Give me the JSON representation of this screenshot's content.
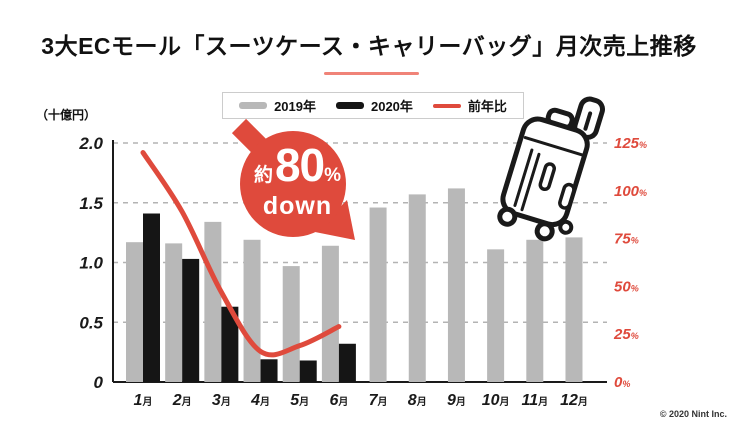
{
  "title": "3大ECモール「スーツケース・キャリーバッグ」月次売上推移",
  "legend": {
    "items": [
      {
        "label": "2019年",
        "type": "bar",
        "color": "#b8b8b8"
      },
      {
        "label": "2020年",
        "type": "bar",
        "color": "#151515"
      },
      {
        "label": "前年比",
        "type": "line",
        "color": "#df4a3c"
      }
    ]
  },
  "annotation": {
    "prefix": "約",
    "value": "80",
    "unit": "%",
    "word": "down"
  },
  "footer": {
    "copyright": "© 2020 Nint Inc."
  },
  "colors": {
    "accent_red": "#df4a3c",
    "underline_red": "#f08378",
    "bar_2019": "#b8b8b8",
    "bar_2020": "#151515",
    "grid": "#b3b3b3",
    "axis_text": "#1a1a1a"
  },
  "chart_data": {
    "type": "bar",
    "subtype": "grouped monthly bars with year-over-year ratio overlay line",
    "title": "3大ECモール「スーツケース・キャリーバッグ」月次売上推移",
    "categories": [
      "1月",
      "2月",
      "3月",
      "4月",
      "5月",
      "6月",
      "7月",
      "8月",
      "9月",
      "10月",
      "11月",
      "12月"
    ],
    "series": [
      {
        "name": "2019年",
        "type": "bar",
        "axis": "left",
        "color": "#b8b8b8",
        "values": [
          1.17,
          1.16,
          1.34,
          1.19,
          0.97,
          1.14,
          1.46,
          1.57,
          1.62,
          1.11,
          1.19,
          1.21
        ]
      },
      {
        "name": "2020年",
        "type": "bar",
        "axis": "left",
        "color": "#151515",
        "values": [
          1.41,
          1.03,
          0.63,
          0.19,
          0.18,
          0.32,
          null,
          null,
          null,
          null,
          null,
          null
        ]
      },
      {
        "name": "前年比",
        "type": "line",
        "axis": "right",
        "color": "#df4a3c",
        "unit": "%",
        "values": [
          120,
          89,
          47,
          16,
          19,
          29,
          null,
          null,
          null,
          null,
          null,
          null
        ]
      }
    ],
    "left_axis": {
      "label": "（十億円）",
      "ticks": [
        "2.0",
        "1.5",
        "1.0",
        "0.5",
        "0"
      ],
      "tick_values": [
        2.0,
        1.5,
        1.0,
        0.5,
        0
      ],
      "range": [
        0,
        2.0
      ]
    },
    "right_axis": {
      "ticks": [
        "125",
        "100",
        "75",
        "50",
        "25",
        "0"
      ],
      "tick_values": [
        125,
        100,
        75,
        50,
        25,
        0
      ],
      "unit": "%",
      "range": [
        0,
        125
      ]
    },
    "grid": "dashed horizontal lines at left-axis ticks",
    "legend_position": "top-center",
    "annotation": "約80% down"
  }
}
